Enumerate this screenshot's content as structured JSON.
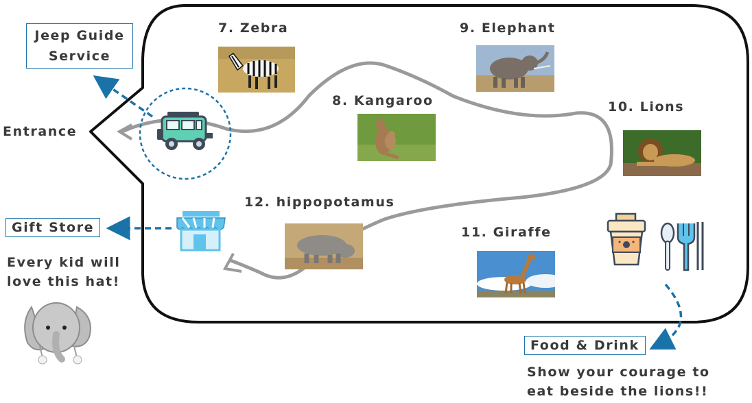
{
  "labels": {
    "entrance": "Entrance",
    "jeep_guide_line1": "Jeep Guide",
    "jeep_guide_line2": "Service",
    "gift_store": "Gift Store",
    "gift_caption_line1": "Every kid will",
    "gift_caption_line2": "love this hat!",
    "food_drink": "Food & Drink",
    "food_caption_line1": "Show your courage to",
    "food_caption_line2": "eat beside the lions!!"
  },
  "stops": [
    {
      "label": "7. Zebra",
      "icon": "zebra-photo"
    },
    {
      "label": "8. Kangaroo",
      "icon": "kangaroo-photo"
    },
    {
      "label": "9. Elephant",
      "icon": "elephant-photo"
    },
    {
      "label": "10. Lions",
      "icon": "lion-photo"
    },
    {
      "label": "11. Giraffe",
      "icon": "giraffe-photo"
    },
    {
      "label": "12. hippopotamus",
      "icon": "hippo-photo"
    }
  ],
  "icons": [
    "jeep-icon",
    "shop-icon",
    "coffee-cup-icon",
    "cutlery-icon",
    "elephant-hat-image"
  ],
  "colors": {
    "accent": "#1a73a8",
    "arrow": "#1a73a8",
    "path": "#9a9a9a",
    "outline": "#111111",
    "jeep_body": "#5ed0b4",
    "shop_blue": "#5fc3ec"
  }
}
